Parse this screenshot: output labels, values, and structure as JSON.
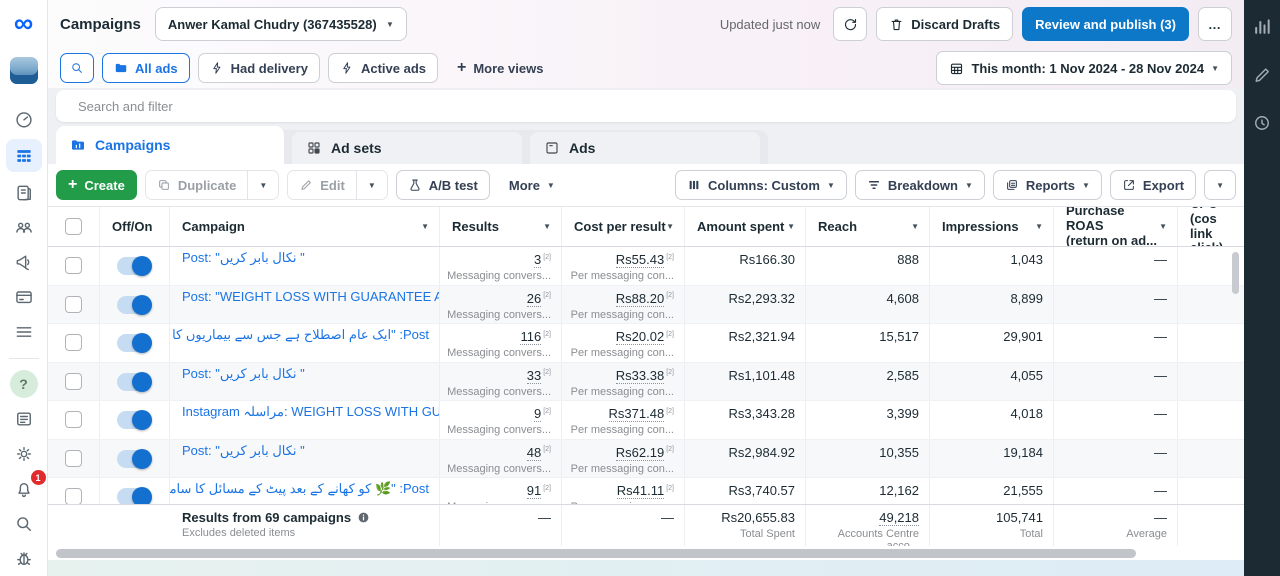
{
  "colors": {
    "accent": "#0e78c8",
    "link": "#1b74e4",
    "green": "#239c4a",
    "dark_panel": "#1c2b33"
  },
  "icons": {
    "meta": "∞",
    "caret": "▼",
    "plus": "+",
    "ellipsis": "…",
    "help": "?"
  },
  "top_bar": {
    "title": "Campaigns",
    "account": "Anwer Kamal Chudry (367435528)",
    "updated": "Updated just now",
    "discard": "Discard Drafts",
    "publish": "Review and publish (3)"
  },
  "filter_bar": {
    "all_ads": "All ads",
    "had_delivery": "Had delivery",
    "active_ads": "Active ads",
    "more_views": "More views",
    "date_range": "This month: 1 Nov 2024 - 28 Nov 2024"
  },
  "search": {
    "placeholder": "Search and filter"
  },
  "tabs": {
    "campaigns": "Campaigns",
    "ad_sets": "Ad sets",
    "ads": "Ads"
  },
  "toolbar": {
    "create": "Create",
    "duplicate": "Duplicate",
    "edit": "Edit",
    "ab_test": "A/B test",
    "more": "More",
    "columns": "Columns: Custom",
    "breakdown": "Breakdown",
    "reports": "Reports",
    "export": "Export"
  },
  "table": {
    "footnote_marker": "[2]",
    "headers": {
      "off_on": "Off/On",
      "campaign": "Campaign",
      "results": "Results",
      "cost": "Cost per result",
      "spent": "Amount spent",
      "reach": "Reach",
      "impressions": "Impressions",
      "roas_line1": "Purchase ROAS",
      "roas_line2": "(return on ad...",
      "cpc_line1": "CPC (cos",
      "cpc_line2": "link click)"
    },
    "rows": [
      {
        "name": "Post: \"نکال بابر کریں \"",
        "dir": "ltr",
        "results": "3",
        "results_sub": "Messaging convers...",
        "cost": "Rs55.43",
        "cost_sub": "Per messaging con...",
        "spent": "Rs166.30",
        "reach": "888",
        "impressions": "1,043",
        "roas": "—"
      },
      {
        "name": "Post: \"WEIGHT LOSS WITH GUARANTEE AT SI...",
        "dir": "ltr",
        "results": "26",
        "results_sub": "Messaging convers...",
        "cost": "Rs88.20",
        "cost_sub": "Per messaging con...",
        "spent": "Rs2,293.32",
        "reach": "4,608",
        "impressions": "8,899",
        "roas": "—"
      },
      {
        "name": "Post: \"ایک عام اصطلاح ہے جس سے بیماریوں کا ایک ...",
        "dir": "rtl",
        "results": "116",
        "results_sub": "Messaging convers...",
        "cost": "Rs20.02",
        "cost_sub": "Per messaging con...",
        "spent": "Rs2,321.94",
        "reach": "15,517",
        "impressions": "29,901",
        "roas": "—"
      },
      {
        "name": "Post: \"نکال بابر کریں \"",
        "dir": "ltr",
        "results": "33",
        "results_sub": "Messaging convers...",
        "cost": "Rs33.38",
        "cost_sub": "Per messaging con...",
        "spent": "Rs1,101.48",
        "reach": "2,585",
        "impressions": "4,055",
        "roas": "—"
      },
      {
        "name": "Instagram مراسلہ: WEIGHT LOSS WITH GUARA...",
        "dir": "ltr",
        "results": "9",
        "results_sub": "Messaging convers...",
        "cost": "Rs371.48",
        "cost_sub": "Per messaging con...",
        "spent": "Rs3,343.28",
        "reach": "3,399",
        "impressions": "4,018",
        "roas": "—"
      },
      {
        "name": "Post: \"نکال بابر کریں \"",
        "dir": "ltr",
        "results": "48",
        "results_sub": "Messaging convers...",
        "cost": "Rs62.19",
        "cost_sub": "Per messaging con...",
        "spent": "Rs2,984.92",
        "reach": "10,355",
        "impressions": "19,184",
        "roas": "—"
      },
      {
        "name": "Post: \"🌿 کو کھانے کے بعد پیٹ کے مسائل کا سامنا ...",
        "dir": "rtl",
        "results": "91",
        "results_sub": "Messaging convers...",
        "cost": "Rs41.11",
        "cost_sub": "Per messaging con...",
        "spent": "Rs3,740.57",
        "reach": "12,162",
        "impressions": "21,555",
        "roas": "—"
      }
    ],
    "footer": {
      "title": "Results from 69 campaigns",
      "subtitle": "Excludes deleted items",
      "results": "—",
      "cost": "—",
      "spent": "Rs20,655.83",
      "spent_label": "Total Spent",
      "reach": "49,218",
      "reach_label": "Accounts Centre acco...",
      "impressions": "105,741",
      "impressions_label": "Total",
      "roas": "—",
      "roas_label": "Average"
    }
  },
  "left_rail": {
    "notification_count": "1"
  }
}
